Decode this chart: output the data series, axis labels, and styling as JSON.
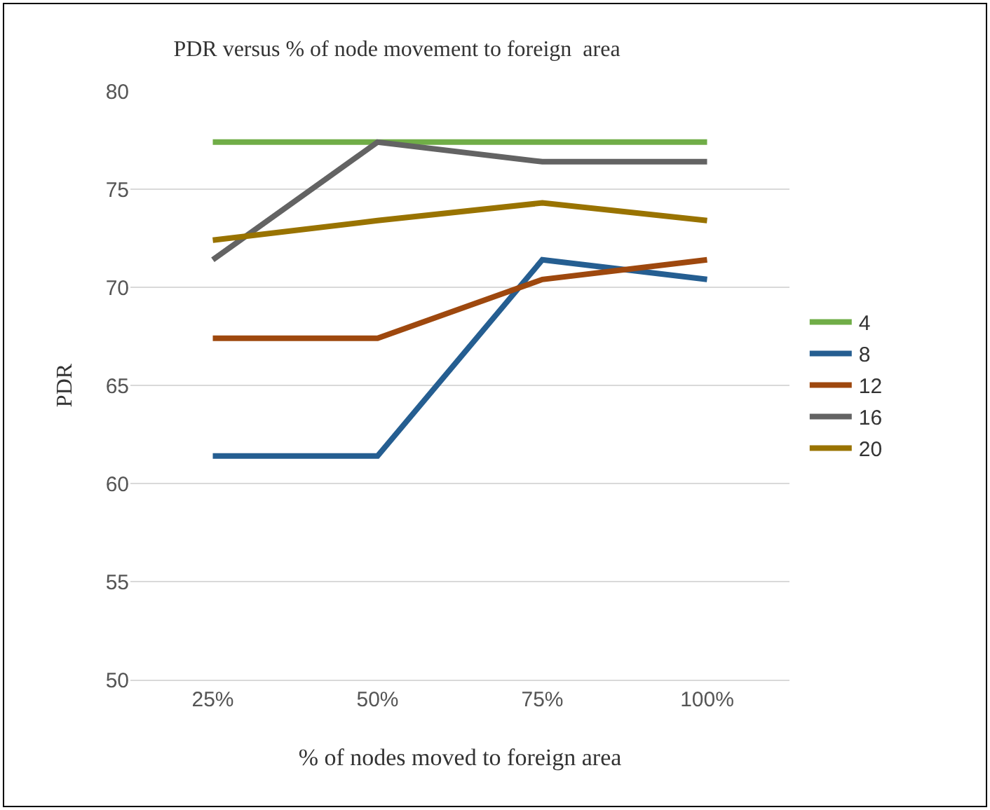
{
  "chart_data": {
    "type": "line",
    "title": "PDR versus % of node movement to foreign  area",
    "xlabel": "% of nodes moved to foreign area",
    "ylabel": "PDR",
    "categories": [
      "25%",
      "50%",
      "75%",
      "100%"
    ],
    "ylim": [
      50,
      80
    ],
    "yticks": [
      50,
      55,
      60,
      65,
      70,
      75,
      80
    ],
    "grid": "y",
    "legend": "right",
    "marker": "none",
    "line_style": "solid",
    "series": [
      {
        "name": "4",
        "color": "#70ad47",
        "values": [
          77.4,
          77.4,
          77.4,
          77.4
        ]
      },
      {
        "name": "8",
        "color": "#255e91",
        "values": [
          61.4,
          61.4,
          71.4,
          70.4
        ]
      },
      {
        "name": "12",
        "color": "#9e480e",
        "values": [
          67.4,
          67.4,
          70.4,
          71.4
        ]
      },
      {
        "name": "16",
        "color": "#636363",
        "values": [
          71.4,
          77.4,
          76.4,
          76.4
        ]
      },
      {
        "name": "20",
        "color": "#997300",
        "values": [
          72.4,
          73.4,
          74.3,
          73.4
        ]
      }
    ]
  }
}
